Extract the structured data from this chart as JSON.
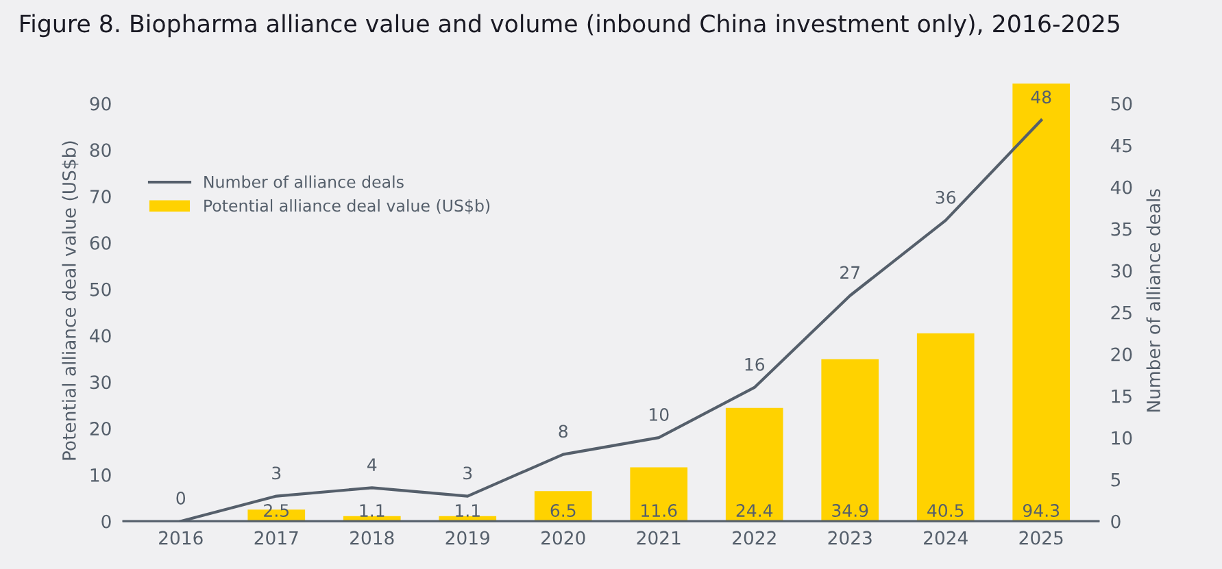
{
  "chart_data": {
    "type": "bar",
    "title": "Figure 8. Biopharma alliance value and volume (inbound China investment only), 2016-2025",
    "categories": [
      "2016",
      "2017",
      "2018",
      "2019",
      "2020",
      "2021",
      "2022",
      "2023",
      "2024",
      "2025"
    ],
    "series": [
      {
        "name": "Number of alliance deals",
        "type": "line",
        "axis": "y2",
        "color": "#555f6b",
        "values": [
          0,
          3,
          4,
          3,
          8,
          10,
          16,
          27,
          36,
          48
        ]
      },
      {
        "name": "Potential alliance deal value (US$b)",
        "color": "#ffd200",
        "values": [
          null,
          2.5,
          1.1,
          1.1,
          6.5,
          11.6,
          24.4,
          34.9,
          40.5,
          94.3
        ]
      }
    ],
    "ylabel": "Potential alliance deal value (US$b)",
    "y2label": "Number of alliance deals",
    "ylim": [
      0,
      95
    ],
    "yticks": [
      0,
      10,
      20,
      30,
      40,
      50,
      60,
      70,
      80,
      90
    ],
    "y2lim": [
      0,
      52.78
    ],
    "y2ticks": [
      0,
      5,
      10,
      15,
      20,
      25,
      30,
      35,
      40,
      45,
      50
    ],
    "data_labels": true,
    "grid": false,
    "legend": "top left",
    "marker": "none",
    "line_style": "solid"
  }
}
